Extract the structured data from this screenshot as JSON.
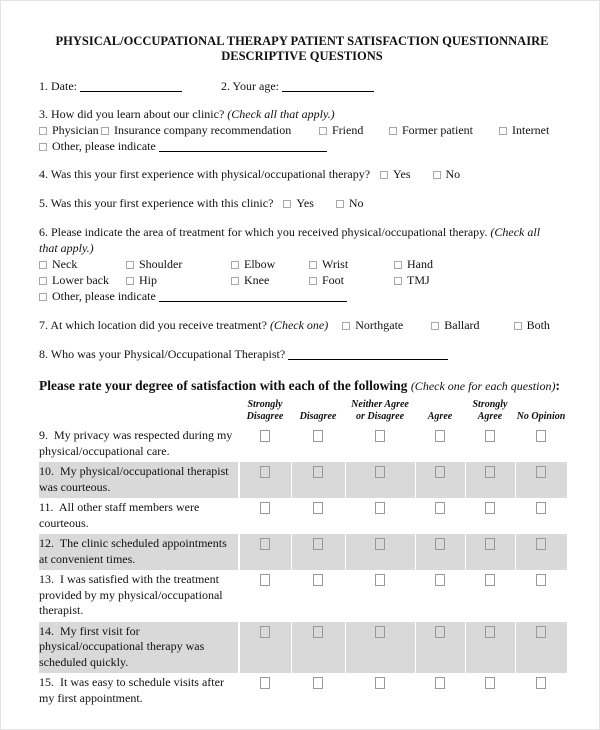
{
  "header": {
    "line1": "PHYSICAL/OCCUPATIONAL THERAPY PATIENT SATISFACTION QUESTIONNAIRE",
    "line2": "DESCRIPTIVE QUESTIONS"
  },
  "q1": {
    "label": "1. Date:"
  },
  "q2": {
    "label": "2. Your age:"
  },
  "q3": {
    "text": "3. How did you learn about our clinic?",
    "hint": "(Check all that apply.)",
    "options": [
      "Physician",
      "Insurance company recommendation",
      "Friend",
      "Former patient",
      "Internet"
    ],
    "other_label": "Other, please indicate"
  },
  "q4": {
    "text": "4. Was this your first experience with physical/occupational therapy?",
    "options": [
      "Yes",
      "No"
    ]
  },
  "q5": {
    "text": "5. Was this your first experience with this clinic?",
    "options": [
      "Yes",
      "No"
    ]
  },
  "q6": {
    "text": "6. Please indicate the area of treatment for which you received physical/occupational therapy.",
    "hint": "(Check all that apply.)",
    "row1": [
      "Neck",
      "Shoulder",
      "Elbow",
      "Wrist",
      "Hand"
    ],
    "row2": [
      "Lower back",
      "Hip",
      "Knee",
      "Foot",
      "TMJ"
    ],
    "other_label": "Other, please indicate"
  },
  "q7": {
    "text": "7. At which location did you receive treatment?",
    "hint": "(Check one)",
    "options": [
      "Northgate",
      "Ballard",
      "Both"
    ]
  },
  "q8": {
    "text": "8. Who was your Physical/Occupational Therapist?"
  },
  "rating": {
    "title": "Please rate your degree of satisfaction with each of the following",
    "title_hint": "(Check one for each question)",
    "title_colon": ":",
    "columns": [
      "Strongly Disagree",
      "Disagree",
      "Neither Agree or Disagree",
      "Agree",
      "Strongly Agree",
      "No Opinion"
    ],
    "rows": [
      {
        "text": "9.  My privacy was respected during my physical/occupational care.",
        "shaded": false
      },
      {
        "text": "10.  My physical/occupational therapist was courteous.",
        "shaded": true
      },
      {
        "text": "11.  All other staff members were courteous.",
        "shaded": false
      },
      {
        "text": "12.  The clinic scheduled appointments at convenient times.",
        "shaded": true
      },
      {
        "text": "13.  I was satisfied with the treatment provided by my physical/occupational therapist.",
        "shaded": false
      },
      {
        "text": "14.  My first visit for physical/occupational therapy was scheduled quickly.",
        "shaded": true
      },
      {
        "text": "15.  It was easy to schedule visits after my first appointment.",
        "shaded": false
      }
    ]
  },
  "colors": {
    "row_shade": "#d9d9d9",
    "checkbox_border": "#9a9a9a"
  }
}
